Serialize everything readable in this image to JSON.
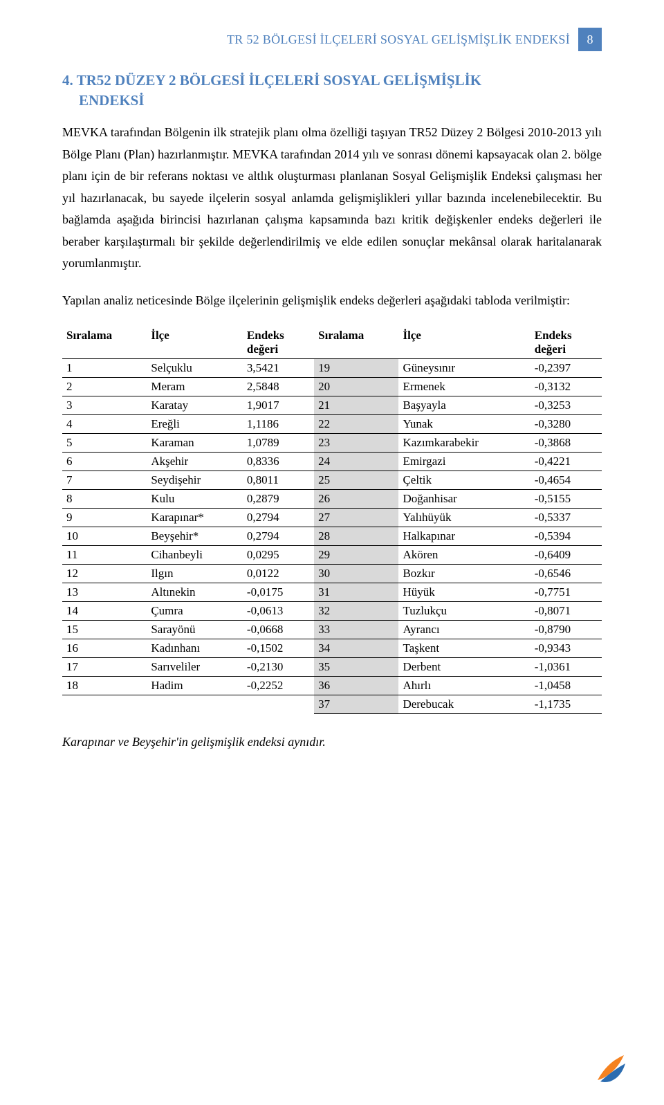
{
  "header": {
    "title": "TR 52 BÖLGESİ İLÇELERİ SOSYAL GELİŞMİŞLİK ENDEKSİ",
    "page_number": "8"
  },
  "section": {
    "heading_line1": "4. TR52 DÜZEY 2 BÖLGESİ İLÇELERİ SOSYAL GELİŞMİŞLİK",
    "heading_line2": "ENDEKSİ"
  },
  "paragraphs": {
    "p1": "MEVKA tarafından Bölgenin ilk stratejik planı olma özelliği taşıyan TR52 Düzey 2 Bölgesi 2010-2013 yılı Bölge Planı (Plan) hazırlanmıştır. MEVKA tarafından 2014 yılı ve sonrası dönemi kapsayacak olan 2. bölge planı için de bir referans noktası ve altlık oluşturması planlanan Sosyal Gelişmişlik Endeksi çalışması her yıl hazırlanacak, bu sayede ilçelerin sosyal anlamda gelişmişlikleri yıllar bazında incelenebilecektir. Bu bağlamda aşağıda birincisi hazırlanan çalışma kapsamında bazı kritik değişkenler endeks değerleri ile beraber karşılaştırmalı bir şekilde değerlendirilmiş ve elde edilen sonuçlar mekânsal olarak haritalanarak yorumlanmıştır.",
    "p2": "Yapılan analiz neticesinde Bölge ilçelerinin gelişmişlik endeks değerleri aşağıdaki tabloda verilmiştir:"
  },
  "table": {
    "headers": {
      "rank_l": "Sıralama",
      "ilce_l": "İlçe",
      "endeks_l_1": "Endeks",
      "endeks_l_2": "değeri",
      "rank_r": "Sıralama",
      "ilce_r": "İlçe",
      "endeks_r_1": "Endeks",
      "endeks_r_2": "değeri"
    },
    "rows": [
      {
        "lr": "1",
        "li": "Selçuklu",
        "le": "3,5421",
        "rr": "19",
        "ri": "Güneysınır",
        "re": "-0,2397"
      },
      {
        "lr": "2",
        "li": "Meram",
        "le": "2,5848",
        "rr": "20",
        "ri": "Ermenek",
        "re": "-0,3132"
      },
      {
        "lr": "3",
        "li": "Karatay",
        "le": "1,9017",
        "rr": "21",
        "ri": "Başyayla",
        "re": "-0,3253"
      },
      {
        "lr": "4",
        "li": "Ereğli",
        "le": "1,1186",
        "rr": "22",
        "ri": "Yunak",
        "re": "-0,3280"
      },
      {
        "lr": "5",
        "li": "Karaman",
        "le": "1,0789",
        "rr": "23",
        "ri": "Kazımkarabekir",
        "re": "-0,3868"
      },
      {
        "lr": "6",
        "li": "Akşehir",
        "le": "0,8336",
        "rr": "24",
        "ri": "Emirgazi",
        "re": "-0,4221"
      },
      {
        "lr": "7",
        "li": "Seydişehir",
        "le": "0,8011",
        "rr": "25",
        "ri": "Çeltik",
        "re": "-0,4654"
      },
      {
        "lr": "8",
        "li": "Kulu",
        "le": "0,2879",
        "rr": "26",
        "ri": "Doğanhisar",
        "re": "-0,5155"
      },
      {
        "lr": "9",
        "li": "Karapınar*",
        "le": "0,2794",
        "rr": "27",
        "ri": "Yalıhüyük",
        "re": "-0,5337"
      },
      {
        "lr": "10",
        "li": "Beyşehir*",
        "le": "0,2794",
        "rr": "28",
        "ri": "Halkapınar",
        "re": "-0,5394"
      },
      {
        "lr": "11",
        "li": "Cihanbeyli",
        "le": "0,0295",
        "rr": "29",
        "ri": "Akören",
        "re": "-0,6409"
      },
      {
        "lr": "12",
        "li": "Ilgın",
        "le": "0,0122",
        "rr": "30",
        "ri": "Bozkır",
        "re": "-0,6546"
      },
      {
        "lr": "13",
        "li": "Altınekin",
        "le": "-0,0175",
        "rr": "31",
        "ri": "Hüyük",
        "re": "-0,7751"
      },
      {
        "lr": "14",
        "li": "Çumra",
        "le": "-0,0613",
        "rr": "32",
        "ri": "Tuzlukçu",
        "re": "-0,8071"
      },
      {
        "lr": "15",
        "li": "Sarayönü",
        "le": "-0,0668",
        "rr": "33",
        "ri": "Ayrancı",
        "re": "-0,8790"
      },
      {
        "lr": "16",
        "li": "Kadınhanı",
        "le": "-0,1502",
        "rr": "34",
        "ri": "Taşkent",
        "re": "-0,9343"
      },
      {
        "lr": "17",
        "li": "Sarıveliler",
        "le": "-0,2130",
        "rr": "35",
        "ri": "Derbent",
        "re": "-1,0361"
      },
      {
        "lr": "18",
        "li": "Hadim",
        "le": "-0,2252",
        "rr": "36",
        "ri": "Ahırlı",
        "re": "-1,0458"
      },
      {
        "lr": "",
        "li": "",
        "le": "",
        "rr": "37",
        "ri": "Derebucak",
        "re": "-1,1735"
      }
    ]
  },
  "footnote": "Karapınar ve Beyşehir'in gelişmişlik endeksi aynıdır.",
  "colors": {
    "accent": "#4f81bd",
    "shade": "#d9d9d9",
    "logo_orange": "#f58220",
    "logo_blue": "#2b6cb0"
  }
}
